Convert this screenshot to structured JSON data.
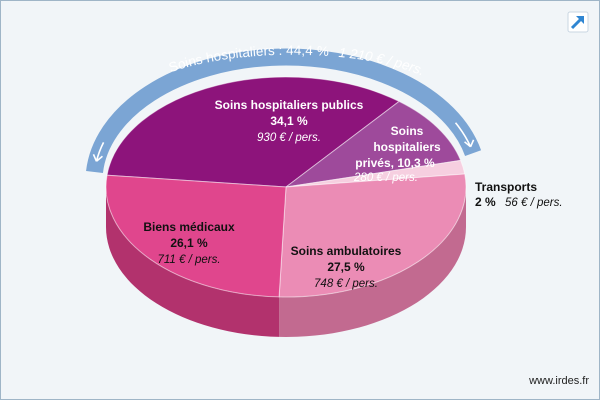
{
  "chart_data": {
    "type": "pie",
    "slices": [
      {
        "key": "publics",
        "label_lines": [
          "Soins hospitaliers publics"
        ],
        "pct_text": "34,1 %",
        "value": 34.1,
        "per_person": "930 € / pers.",
        "color": "#8d147b",
        "side_color": "#6b0e5d"
      },
      {
        "key": "prives",
        "label_lines": [
          "Soins",
          "hospitaliers",
          "privés, 10,3 %"
        ],
        "pct_text": "10,3 %",
        "value": 10.3,
        "per_person": "280 € / pers.",
        "color": "#9e4a9b",
        "side_color": "#7a3577"
      },
      {
        "key": "transports",
        "label_lines": [
          "Transports"
        ],
        "pct_text": "2 %",
        "value": 2.0,
        "per_person": "56 € / pers.",
        "color": "#f6cfe0",
        "side_color": "#d8a9bd"
      },
      {
        "key": "ambulatoires",
        "label_lines": [
          "Soins ambulatoires"
        ],
        "pct_text": "27,5 %",
        "value": 27.5,
        "per_person": "748 € / pers.",
        "color": "#eb8cb5",
        "side_color": "#c26a90"
      },
      {
        "key": "biens",
        "label_lines": [
          "Biens médicaux"
        ],
        "pct_text": "26,1 %",
        "value": 26.1,
        "per_person": "711 € / pers.",
        "color": "#e0468d",
        "side_color": "#b2326d"
      }
    ],
    "group_arc": {
      "label": "Soins hospitaliers : 44,4 %",
      "per_person": "1 210 € / pers.",
      "value": 44.4,
      "color": "#7ba5d4"
    }
  },
  "source": "www.irdes.fr",
  "icons": {
    "expand": "expand-arrow-icon"
  }
}
